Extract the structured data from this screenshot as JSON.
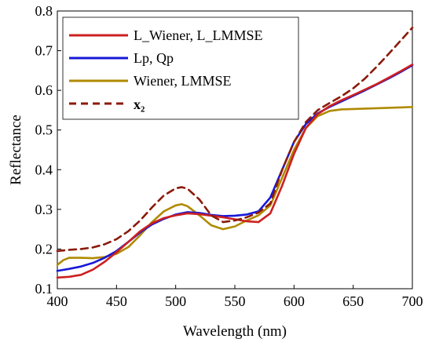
{
  "chart_data": {
    "type": "line",
    "xlabel": "Wavelength (nm)",
    "ylabel": "Reflectance",
    "xlim": [
      400,
      700
    ],
    "ylim": [
      0.1,
      0.8
    ],
    "xticks": [
      400,
      450,
      500,
      550,
      600,
      650,
      700
    ],
    "yticks": [
      0.1,
      0.2,
      0.3,
      0.4,
      0.5,
      0.6,
      0.7,
      0.8
    ],
    "xtick_labels": [
      "400",
      "450",
      "500",
      "550",
      "600",
      "650",
      "700"
    ],
    "ytick_labels": [
      "0.1",
      "0.2",
      "0.3",
      "0.4",
      "0.5",
      "0.6",
      "0.7",
      "0.8"
    ],
    "grid": false,
    "legend_position": "top-left",
    "series": [
      {
        "name": "L_Wiener, L_LMMSE",
        "color": "#cc2020",
        "style": "solid",
        "x": [
          400,
          410,
          420,
          430,
          440,
          450,
          460,
          470,
          480,
          490,
          500,
          510,
          520,
          530,
          540,
          550,
          560,
          570,
          580,
          590,
          600,
          610,
          620,
          630,
          640,
          650,
          660,
          670,
          680,
          690,
          700
        ],
        "y": [
          0.128,
          0.13,
          0.135,
          0.148,
          0.168,
          0.192,
          0.218,
          0.245,
          0.265,
          0.278,
          0.285,
          0.29,
          0.288,
          0.284,
          0.28,
          0.275,
          0.27,
          0.268,
          0.29,
          0.36,
          0.44,
          0.505,
          0.54,
          0.56,
          0.575,
          0.588,
          0.602,
          0.616,
          0.632,
          0.648,
          0.665
        ]
      },
      {
        "name": "Lp, Qp",
        "color": "#1818d8",
        "style": "solid",
        "x": [
          400,
          410,
          420,
          430,
          440,
          450,
          460,
          470,
          480,
          490,
          500,
          510,
          520,
          530,
          540,
          550,
          560,
          570,
          580,
          590,
          600,
          610,
          620,
          630,
          640,
          650,
          660,
          670,
          680,
          690,
          700
        ],
        "y": [
          0.145,
          0.15,
          0.156,
          0.165,
          0.178,
          0.195,
          0.218,
          0.242,
          0.262,
          0.276,
          0.287,
          0.293,
          0.291,
          0.286,
          0.283,
          0.284,
          0.287,
          0.295,
          0.33,
          0.4,
          0.47,
          0.515,
          0.542,
          0.558,
          0.572,
          0.586,
          0.6,
          0.615,
          0.63,
          0.646,
          0.663
        ]
      },
      {
        "name": "Wiener, LMMSE",
        "color": "#b08a00",
        "style": "solid",
        "x": [
          400,
          405,
          410,
          420,
          430,
          440,
          450,
          460,
          470,
          480,
          490,
          500,
          505,
          510,
          520,
          530,
          540,
          550,
          560,
          570,
          580,
          590,
          600,
          610,
          620,
          630,
          640,
          650,
          660,
          670,
          680,
          690,
          700
        ],
        "y": [
          0.16,
          0.172,
          0.178,
          0.178,
          0.177,
          0.18,
          0.188,
          0.205,
          0.235,
          0.268,
          0.295,
          0.31,
          0.313,
          0.308,
          0.285,
          0.26,
          0.25,
          0.257,
          0.272,
          0.285,
          0.31,
          0.38,
          0.45,
          0.505,
          0.535,
          0.548,
          0.552,
          0.553,
          0.554,
          0.555,
          0.556,
          0.557,
          0.558
        ]
      },
      {
        "name": "x₂",
        "color": "#8b1a0a",
        "style": "dashed",
        "x": [
          400,
          410,
          420,
          430,
          440,
          450,
          460,
          470,
          480,
          490,
          500,
          505,
          510,
          520,
          530,
          540,
          550,
          560,
          570,
          580,
          590,
          600,
          610,
          620,
          630,
          640,
          650,
          660,
          670,
          680,
          690,
          700
        ],
        "y": [
          0.195,
          0.198,
          0.2,
          0.204,
          0.212,
          0.225,
          0.245,
          0.272,
          0.305,
          0.335,
          0.353,
          0.356,
          0.352,
          0.325,
          0.285,
          0.268,
          0.272,
          0.28,
          0.292,
          0.315,
          0.4,
          0.47,
          0.52,
          0.55,
          0.568,
          0.585,
          0.605,
          0.63,
          0.66,
          0.692,
          0.725,
          0.758
        ]
      }
    ]
  }
}
